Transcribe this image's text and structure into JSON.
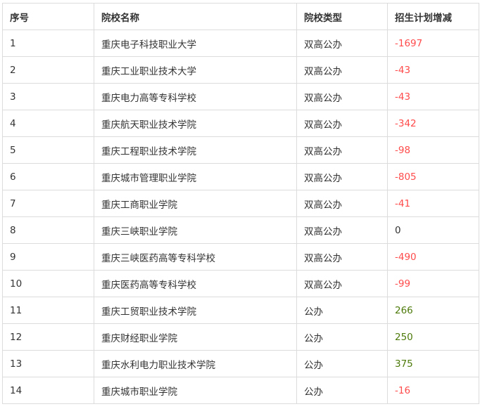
{
  "headers": [
    "序号",
    "院校名称",
    "院校类型",
    "招生计划增减"
  ],
  "colors": {
    "negative": "#ff4b4b",
    "positive": "#4d7a0a",
    "zero": "#333333"
  },
  "rows": [
    {
      "no": "1",
      "name": "重庆电子科技职业大学",
      "type": "双高公办",
      "change": "-1697"
    },
    {
      "no": "2",
      "name": "重庆工业职业技术大学",
      "type": "双高公办",
      "change": "-43"
    },
    {
      "no": "3",
      "name": "重庆电力高等专科学校",
      "type": "双高公办",
      "change": "-43"
    },
    {
      "no": "4",
      "name": "重庆航天职业技术学院",
      "type": "双高公办",
      "change": "-342"
    },
    {
      "no": "5",
      "name": "重庆工程职业技术学院",
      "type": "双高公办",
      "change": "-98"
    },
    {
      "no": "6",
      "name": "重庆城市管理职业学院",
      "type": "双高公办",
      "change": "-805"
    },
    {
      "no": "7",
      "name": "重庆工商职业学院",
      "type": "双高公办",
      "change": "-41"
    },
    {
      "no": "8",
      "name": "重庆三峡职业学院",
      "type": "双高公办",
      "change": "0"
    },
    {
      "no": "9",
      "name": "重庆三峡医药高等专科学校",
      "type": "双高公办",
      "change": "-490"
    },
    {
      "no": "10",
      "name": "重庆医药高等专科学校",
      "type": "双高公办",
      "change": "-99"
    },
    {
      "no": "11",
      "name": "重庆工贸职业技术学院",
      "type": "公办",
      "change": "266"
    },
    {
      "no": "12",
      "name": "重庆财经职业学院",
      "type": "公办",
      "change": "250"
    },
    {
      "no": "13",
      "name": "重庆水利电力职业技术学院",
      "type": "公办",
      "change": "375"
    },
    {
      "no": "14",
      "name": "重庆城市职业学院",
      "type": "公办",
      "change": "-16"
    }
  ]
}
